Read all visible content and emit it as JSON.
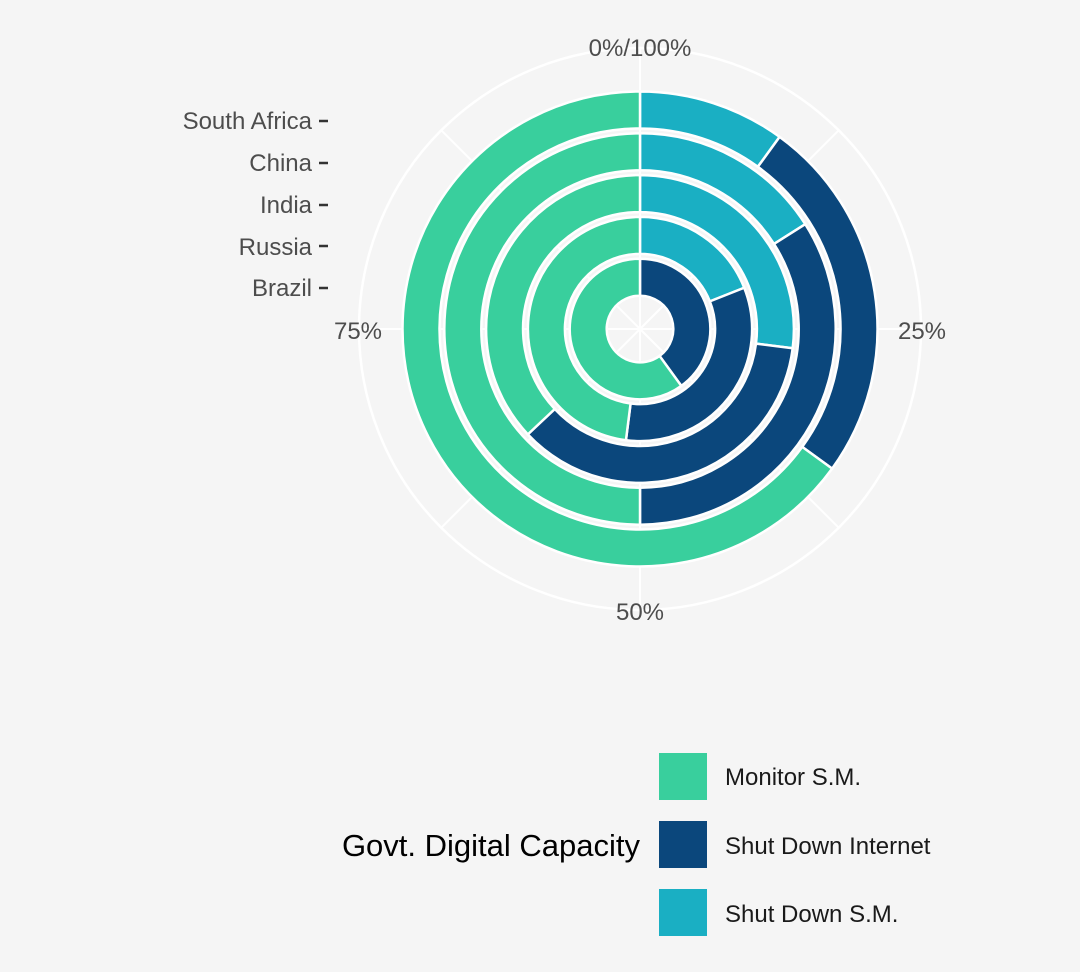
{
  "chart_data": {
    "type": "radial_stacked_bar",
    "categories": [
      "Brazil",
      "Russia",
      "India",
      "China",
      "South Africa"
    ],
    "series": [
      {
        "name": "Shut Down S.M.",
        "color": "#1aafc3",
        "values": [
          0,
          19,
          27,
          16,
          10
        ]
      },
      {
        "name": "Shut Down Internet",
        "color": "#0b477c",
        "values": [
          40,
          33,
          36,
          34,
          25
        ]
      },
      {
        "name": "Monitor S.M.",
        "color": "#39cf9d",
        "values": [
          60,
          48,
          37,
          50,
          65
        ]
      }
    ],
    "angular_ticks": [
      "0%/100%",
      "25%",
      "50%",
      "75%"
    ],
    "angular_range": [
      0,
      100
    ],
    "legend": {
      "title": "Govt. Digital Capacity",
      "entries": [
        {
          "label": "Monitor S.M.",
          "color": "#39cf9d"
        },
        {
          "label": "Shut Down Internet",
          "color": "#0b477c"
        },
        {
          "label": "Shut Down S.M.",
          "color": "#1aafc3"
        }
      ],
      "position": "bottom"
    },
    "grid": true
  }
}
